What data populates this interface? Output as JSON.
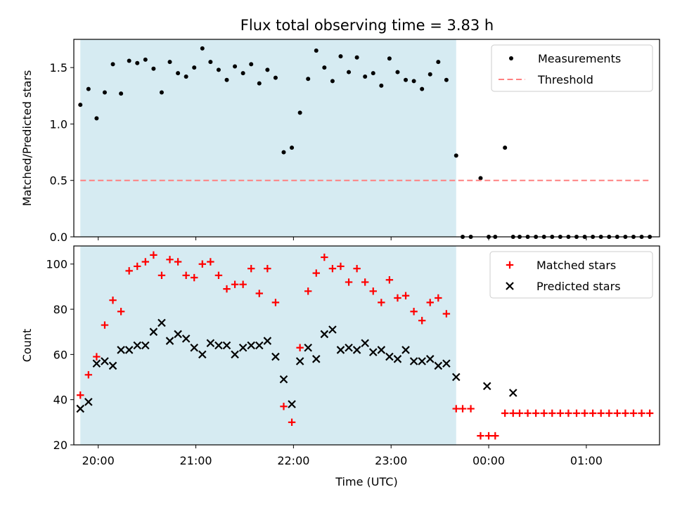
{
  "figure": {
    "title": "Flux total observing time = 3.83 h",
    "colors": {
      "shade": "#add8e6",
      "threshold": "#ff8080",
      "matched": "#ff0000",
      "predicted": "#000000",
      "measurements": "#000000"
    }
  },
  "chart_data": [
    {
      "type": "scatter",
      "ylabel": "Matched/Predicted stars",
      "ylim": [
        0,
        1.75
      ],
      "yticks": [
        "0.0",
        "0.5",
        "1.0",
        "1.5"
      ],
      "xlim": [
        "19:45",
        "01:45"
      ],
      "shaded_span": [
        "19:49",
        "23:40"
      ],
      "legend": {
        "placement": "top-right",
        "entries": [
          "Measurements",
          "Threshold"
        ]
      },
      "series": [
        {
          "name": "Measurements",
          "points": [
            [
              "19:49",
              1.17
            ],
            [
              "19:54",
              1.31
            ],
            [
              "19:59",
              1.05
            ],
            [
              "20:04",
              1.28
            ],
            [
              "20:09",
              1.53
            ],
            [
              "20:14",
              1.27
            ],
            [
              "20:19",
              1.56
            ],
            [
              "20:24",
              1.54
            ],
            [
              "20:29",
              1.57
            ],
            [
              "20:34",
              1.49
            ],
            [
              "20:39",
              1.28
            ],
            [
              "20:44",
              1.55
            ],
            [
              "20:49",
              1.45
            ],
            [
              "20:54",
              1.42
            ],
            [
              "20:59",
              1.5
            ],
            [
              "21:04",
              1.67
            ],
            [
              "21:09",
              1.55
            ],
            [
              "21:14",
              1.48
            ],
            [
              "21:19",
              1.39
            ],
            [
              "21:24",
              1.51
            ],
            [
              "21:29",
              1.45
            ],
            [
              "21:34",
              1.53
            ],
            [
              "21:39",
              1.36
            ],
            [
              "21:44",
              1.48
            ],
            [
              "21:49",
              1.41
            ],
            [
              "21:54",
              0.75
            ],
            [
              "21:59",
              0.79
            ],
            [
              "22:04",
              1.1
            ],
            [
              "22:09",
              1.4
            ],
            [
              "22:14",
              1.65
            ],
            [
              "22:19",
              1.5
            ],
            [
              "22:24",
              1.38
            ],
            [
              "22:29",
              1.6
            ],
            [
              "22:34",
              1.46
            ],
            [
              "22:39",
              1.59
            ],
            [
              "22:44",
              1.42
            ],
            [
              "22:49",
              1.45
            ],
            [
              "22:54",
              1.34
            ],
            [
              "22:59",
              1.58
            ],
            [
              "23:04",
              1.46
            ],
            [
              "23:09",
              1.39
            ],
            [
              "23:14",
              1.38
            ],
            [
              "23:19",
              1.31
            ],
            [
              "23:24",
              1.44
            ],
            [
              "23:29",
              1.55
            ],
            [
              "23:34",
              1.39
            ],
            [
              "23:40",
              0.72
            ],
            [
              "23:44",
              0.0
            ],
            [
              "23:49",
              0.0
            ],
            [
              "23:55",
              0.52
            ],
            [
              "00:00",
              0.0
            ],
            [
              "00:04",
              0.0
            ],
            [
              "00:10",
              0.79
            ],
            [
              "00:15",
              0.0
            ],
            [
              "00:19",
              0.0
            ],
            [
              "00:24",
              0.0
            ],
            [
              "00:29",
              0.0
            ],
            [
              "00:34",
              0.0
            ],
            [
              "00:39",
              0.0
            ],
            [
              "00:44",
              0.0
            ],
            [
              "00:49",
              0.0
            ],
            [
              "00:54",
              0.0
            ],
            [
              "00:59",
              0.0
            ],
            [
              "01:04",
              0.0
            ],
            [
              "01:09",
              0.0
            ],
            [
              "01:14",
              0.0
            ],
            [
              "01:19",
              0.0
            ],
            [
              "01:24",
              0.0
            ],
            [
              "01:29",
              0.0
            ],
            [
              "01:34",
              0.0
            ],
            [
              "01:39",
              0.0
            ]
          ]
        },
        {
          "name": "Threshold",
          "style": "dashed",
          "x": [
            "19:49",
            "01:39"
          ],
          "value": 0.5
        }
      ]
    },
    {
      "type": "scatter",
      "xlabel": "Time (UTC)",
      "ylabel": "Count",
      "ylim": [
        20,
        108
      ],
      "yticks": [
        "20",
        "40",
        "60",
        "80",
        "100"
      ],
      "xlim": [
        "19:45",
        "01:45"
      ],
      "xticks": [
        "20:00",
        "21:00",
        "22:00",
        "23:00",
        "00:00",
        "01:00"
      ],
      "shaded_span": [
        "19:49",
        "23:40"
      ],
      "legend": {
        "placement": "top-right",
        "entries": [
          "Matched stars",
          "Predicted stars"
        ]
      },
      "series": [
        {
          "name": "Matched stars",
          "marker": "plus",
          "points": [
            [
              "19:49",
              42
            ],
            [
              "19:54",
              51
            ],
            [
              "19:59",
              59
            ],
            [
              "20:04",
              73
            ],
            [
              "20:09",
              84
            ],
            [
              "20:14",
              79
            ],
            [
              "20:19",
              97
            ],
            [
              "20:24",
              99
            ],
            [
              "20:29",
              101
            ],
            [
              "20:34",
              104
            ],
            [
              "20:39",
              95
            ],
            [
              "20:44",
              102
            ],
            [
              "20:49",
              101
            ],
            [
              "20:54",
              95
            ],
            [
              "20:59",
              94
            ],
            [
              "21:04",
              100
            ],
            [
              "21:09",
              101
            ],
            [
              "21:14",
              95
            ],
            [
              "21:19",
              89
            ],
            [
              "21:24",
              91
            ],
            [
              "21:29",
              91
            ],
            [
              "21:34",
              98
            ],
            [
              "21:39",
              87
            ],
            [
              "21:44",
              98
            ],
            [
              "21:49",
              83
            ],
            [
              "21:54",
              37
            ],
            [
              "21:59",
              30
            ],
            [
              "22:04",
              63
            ],
            [
              "22:09",
              88
            ],
            [
              "22:14",
              96
            ],
            [
              "22:19",
              103
            ],
            [
              "22:24",
              98
            ],
            [
              "22:29",
              99
            ],
            [
              "22:34",
              92
            ],
            [
              "22:39",
              98
            ],
            [
              "22:44",
              92
            ],
            [
              "22:49",
              88
            ],
            [
              "22:54",
              83
            ],
            [
              "22:59",
              93
            ],
            [
              "23:04",
              85
            ],
            [
              "23:09",
              86
            ],
            [
              "23:14",
              79
            ],
            [
              "23:19",
              75
            ],
            [
              "23:24",
              83
            ],
            [
              "23:29",
              85
            ],
            [
              "23:34",
              78
            ],
            [
              "23:40",
              36
            ],
            [
              "23:44",
              36
            ],
            [
              "23:49",
              36
            ],
            [
              "23:55",
              24
            ],
            [
              "00:00",
              24
            ],
            [
              "00:04",
              24
            ],
            [
              "00:10",
              34
            ],
            [
              "00:15",
              34
            ],
            [
              "00:19",
              34
            ],
            [
              "00:24",
              34
            ],
            [
              "00:29",
              34
            ],
            [
              "00:34",
              34
            ],
            [
              "00:39",
              34
            ],
            [
              "00:44",
              34
            ],
            [
              "00:49",
              34
            ],
            [
              "00:54",
              34
            ],
            [
              "00:59",
              34
            ],
            [
              "01:04",
              34
            ],
            [
              "01:09",
              34
            ],
            [
              "01:14",
              34
            ],
            [
              "01:19",
              34
            ],
            [
              "01:24",
              34
            ],
            [
              "01:29",
              34
            ],
            [
              "01:34",
              34
            ],
            [
              "01:39",
              34
            ]
          ]
        },
        {
          "name": "Predicted stars",
          "marker": "x",
          "points": [
            [
              "19:49",
              36
            ],
            [
              "19:54",
              39
            ],
            [
              "19:59",
              56
            ],
            [
              "20:04",
              57
            ],
            [
              "20:09",
              55
            ],
            [
              "20:14",
              62
            ],
            [
              "20:19",
              62
            ],
            [
              "20:24",
              64
            ],
            [
              "20:29",
              64
            ],
            [
              "20:34",
              70
            ],
            [
              "20:39",
              74
            ],
            [
              "20:44",
              66
            ],
            [
              "20:49",
              69
            ],
            [
              "20:54",
              67
            ],
            [
              "20:59",
              63
            ],
            [
              "21:04",
              60
            ],
            [
              "21:09",
              65
            ],
            [
              "21:14",
              64
            ],
            [
              "21:19",
              64
            ],
            [
              "21:24",
              60
            ],
            [
              "21:29",
              63
            ],
            [
              "21:34",
              64
            ],
            [
              "21:39",
              64
            ],
            [
              "21:44",
              66
            ],
            [
              "21:49",
              59
            ],
            [
              "21:54",
              49
            ],
            [
              "21:59",
              38
            ],
            [
              "22:04",
              57
            ],
            [
              "22:09",
              63
            ],
            [
              "22:14",
              58
            ],
            [
              "22:19",
              69
            ],
            [
              "22:24",
              71
            ],
            [
              "22:29",
              62
            ],
            [
              "22:34",
              63
            ],
            [
              "22:39",
              62
            ],
            [
              "22:44",
              65
            ],
            [
              "22:49",
              61
            ],
            [
              "22:54",
              62
            ],
            [
              "22:59",
              59
            ],
            [
              "23:04",
              58
            ],
            [
              "23:09",
              62
            ],
            [
              "23:14",
              57
            ],
            [
              "23:19",
              57
            ],
            [
              "23:24",
              58
            ],
            [
              "23:29",
              55
            ],
            [
              "23:34",
              56
            ],
            [
              "23:40",
              50
            ],
            [
              "23:59",
              46
            ],
            [
              "00:15",
              43
            ]
          ]
        }
      ]
    }
  ]
}
